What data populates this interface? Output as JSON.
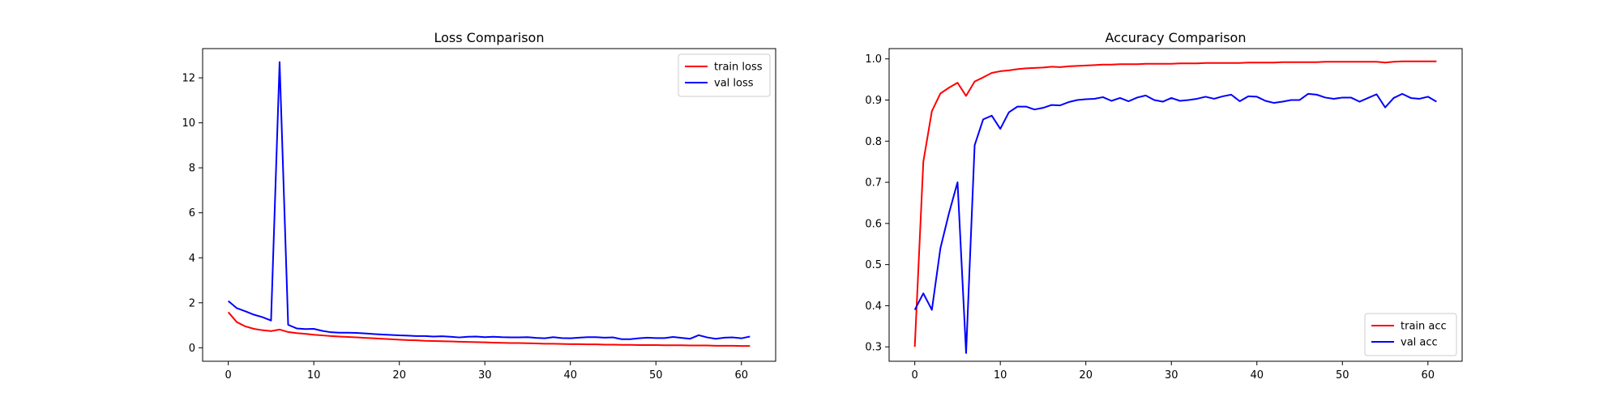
{
  "chart_data": [
    {
      "type": "line",
      "title": "Loss Comparison",
      "xlabel": "",
      "ylabel": "",
      "xlim": [
        -3,
        64
      ],
      "ylim": [
        -0.6,
        13.3
      ],
      "xticks": [
        0,
        10,
        20,
        30,
        40,
        50,
        60
      ],
      "yticks": [
        0,
        2,
        4,
        6,
        8,
        10,
        12
      ],
      "grid": false,
      "legend_position": "top-right",
      "series": [
        {
          "name": "train loss",
          "color": "#ff0000",
          "x": [
            0,
            1,
            2,
            3,
            4,
            5,
            6,
            7,
            8,
            9,
            10,
            11,
            12,
            13,
            14,
            15,
            16,
            17,
            18,
            19,
            20,
            21,
            22,
            23,
            24,
            25,
            26,
            27,
            28,
            29,
            30,
            31,
            32,
            33,
            34,
            35,
            36,
            37,
            38,
            39,
            40,
            41,
            42,
            43,
            44,
            45,
            46,
            47,
            48,
            49,
            50,
            51,
            52,
            53,
            54,
            55,
            56,
            57,
            58,
            59,
            60,
            61
          ],
          "values": [
            1.58,
            1.14,
            0.95,
            0.84,
            0.78,
            0.74,
            0.81,
            0.7,
            0.65,
            0.62,
            0.58,
            0.55,
            0.52,
            0.5,
            0.48,
            0.46,
            0.44,
            0.42,
            0.4,
            0.38,
            0.36,
            0.34,
            0.33,
            0.31,
            0.3,
            0.29,
            0.28,
            0.27,
            0.26,
            0.25,
            0.24,
            0.23,
            0.22,
            0.21,
            0.21,
            0.2,
            0.19,
            0.18,
            0.18,
            0.17,
            0.16,
            0.16,
            0.15,
            0.15,
            0.14,
            0.14,
            0.13,
            0.13,
            0.12,
            0.12,
            0.12,
            0.11,
            0.11,
            0.11,
            0.1,
            0.1,
            0.1,
            0.09,
            0.09,
            0.09,
            0.08,
            0.08
          ]
        },
        {
          "name": "val loss",
          "color": "#0000ff",
          "x": [
            0,
            1,
            2,
            3,
            4,
            5,
            6,
            7,
            8,
            9,
            10,
            11,
            12,
            13,
            14,
            15,
            16,
            17,
            18,
            19,
            20,
            21,
            22,
            23,
            24,
            25,
            26,
            27,
            28,
            29,
            30,
            31,
            32,
            33,
            34,
            35,
            36,
            37,
            38,
            39,
            40,
            41,
            42,
            43,
            44,
            45,
            46,
            47,
            48,
            49,
            50,
            51,
            52,
            53,
            54,
            55,
            56,
            57,
            58,
            59,
            60,
            61
          ],
          "values": [
            2.08,
            1.76,
            1.62,
            1.47,
            1.36,
            1.21,
            12.7,
            1.02,
            0.86,
            0.83,
            0.84,
            0.75,
            0.69,
            0.67,
            0.67,
            0.66,
            0.64,
            0.61,
            0.59,
            0.57,
            0.55,
            0.54,
            0.52,
            0.52,
            0.5,
            0.51,
            0.49,
            0.46,
            0.49,
            0.5,
            0.47,
            0.49,
            0.47,
            0.46,
            0.46,
            0.47,
            0.44,
            0.42,
            0.47,
            0.43,
            0.42,
            0.45,
            0.47,
            0.47,
            0.45,
            0.46,
            0.38,
            0.38,
            0.42,
            0.45,
            0.43,
            0.43,
            0.48,
            0.44,
            0.4,
            0.56,
            0.46,
            0.4,
            0.45,
            0.46,
            0.42,
            0.5
          ]
        }
      ]
    },
    {
      "type": "line",
      "title": "Accuracy Comparison",
      "xlabel": "",
      "ylabel": "",
      "xlim": [
        -3,
        64
      ],
      "ylim": [
        0.265,
        1.025
      ],
      "xticks": [
        0,
        10,
        20,
        30,
        40,
        50,
        60
      ],
      "yticks": [
        0.3,
        0.4,
        0.5,
        0.6,
        0.7,
        0.8,
        0.9,
        1.0
      ],
      "grid": false,
      "legend_position": "bottom-right",
      "series": [
        {
          "name": "train acc",
          "color": "#ff0000",
          "x": [
            0,
            1,
            2,
            3,
            4,
            5,
            6,
            7,
            8,
            9,
            10,
            11,
            12,
            13,
            14,
            15,
            16,
            17,
            18,
            19,
            20,
            21,
            22,
            23,
            24,
            25,
            26,
            27,
            28,
            29,
            30,
            31,
            32,
            33,
            34,
            35,
            36,
            37,
            38,
            39,
            40,
            41,
            42,
            43,
            44,
            45,
            46,
            47,
            48,
            49,
            50,
            51,
            52,
            53,
            54,
            55,
            56,
            57,
            58,
            59,
            60,
            61
          ],
          "values": [
            0.3,
            0.75,
            0.873,
            0.916,
            0.93,
            0.942,
            0.91,
            0.945,
            0.955,
            0.966,
            0.97,
            0.972,
            0.975,
            0.977,
            0.978,
            0.979,
            0.981,
            0.98,
            0.982,
            0.983,
            0.984,
            0.985,
            0.986,
            0.986,
            0.987,
            0.987,
            0.987,
            0.988,
            0.988,
            0.988,
            0.988,
            0.989,
            0.989,
            0.989,
            0.99,
            0.99,
            0.99,
            0.99,
            0.99,
            0.991,
            0.991,
            0.991,
            0.991,
            0.992,
            0.992,
            0.992,
            0.992,
            0.992,
            0.993,
            0.993,
            0.993,
            0.993,
            0.993,
            0.993,
            0.993,
            0.991,
            0.993,
            0.994,
            0.994,
            0.994,
            0.994,
            0.994
          ]
        },
        {
          "name": "val acc",
          "color": "#0000ff",
          "x": [
            0,
            1,
            2,
            3,
            4,
            5,
            6,
            7,
            8,
            9,
            10,
            11,
            12,
            13,
            14,
            15,
            16,
            17,
            18,
            19,
            20,
            21,
            22,
            23,
            24,
            25,
            26,
            27,
            28,
            29,
            30,
            31,
            32,
            33,
            34,
            35,
            36,
            37,
            38,
            39,
            40,
            41,
            42,
            43,
            44,
            45,
            46,
            47,
            48,
            49,
            50,
            51,
            52,
            53,
            54,
            55,
            56,
            57,
            58,
            59,
            60,
            61
          ],
          "values": [
            0.39,
            0.43,
            0.39,
            0.54,
            0.625,
            0.7,
            0.285,
            0.79,
            0.853,
            0.862,
            0.83,
            0.87,
            0.884,
            0.884,
            0.877,
            0.881,
            0.888,
            0.887,
            0.895,
            0.9,
            0.902,
            0.903,
            0.907,
            0.898,
            0.905,
            0.897,
            0.906,
            0.911,
            0.9,
            0.896,
            0.905,
            0.898,
            0.9,
            0.903,
            0.908,
            0.903,
            0.909,
            0.913,
            0.897,
            0.909,
            0.908,
            0.898,
            0.893,
            0.896,
            0.9,
            0.9,
            0.915,
            0.913,
            0.906,
            0.903,
            0.906,
            0.906,
            0.896,
            0.905,
            0.914,
            0.882,
            0.905,
            0.915,
            0.905,
            0.903,
            0.908,
            0.896
          ]
        }
      ]
    }
  ]
}
